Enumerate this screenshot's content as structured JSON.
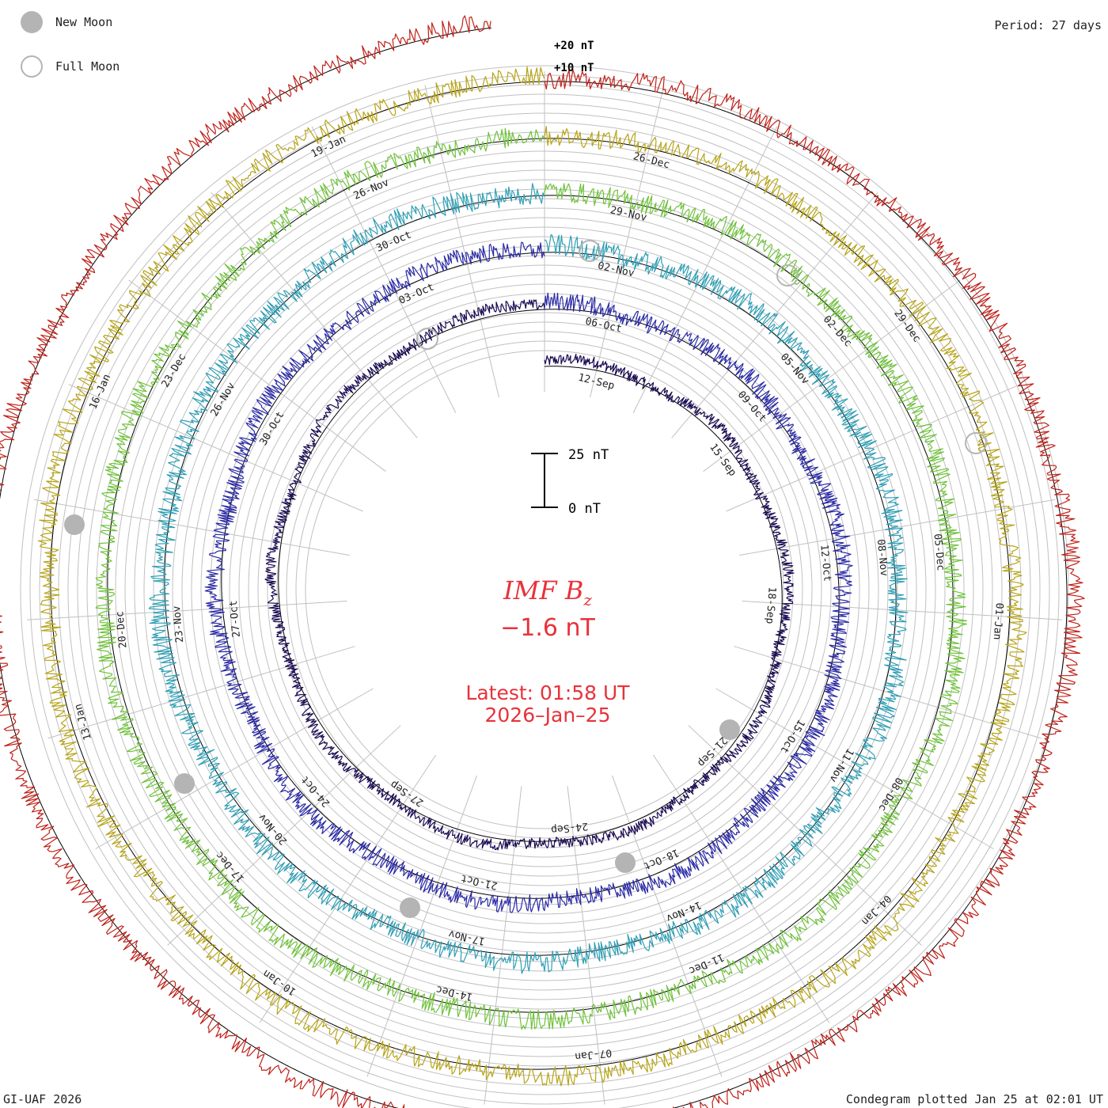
{
  "legend": {
    "new_moon": "New Moon",
    "full_moon": "Full Moon"
  },
  "period": "Period: 27 days",
  "footer": {
    "left": "GI-UAF 2026",
    "right": "Condegram plotted Jan 25 at 02:01 UT"
  },
  "center": {
    "title_main": "IMF B",
    "title_sub": "z",
    "value": "−1.6 nT",
    "latest": "Latest: 01:58 UT",
    "date": "2026–Jan–25",
    "scale_top": "25 nT",
    "scale_bottom": "0 nT"
  },
  "colors": {
    "title": "#e8323a",
    "grid": "#c0c0c0",
    "zero_ring": "#000000",
    "moon": "#b4b4b4"
  },
  "chart_data": {
    "type": "condegram",
    "title": "IMF Bz",
    "unit": "nT",
    "period_days": 27,
    "current_value": -1.6,
    "scale_labels": [
      "+20 nT",
      "+10 nT"
    ],
    "scale_bar_nT": [
      0,
      25
    ],
    "rotations": [
      {
        "color": "#1a0a52",
        "labels": [
          "12-Sep",
          "15-Sep",
          "18-Sep",
          "21-Sep",
          "24-Sep",
          "27-Sep"
        ]
      },
      {
        "color": "#2b2aa6",
        "labels": [
          "06-Oct",
          "09-Oct",
          "12-Oct",
          "15-Oct",
          "18-Oct",
          "21-Oct",
          "24-Oct",
          "27-Oct",
          "30-Oct",
          "03-Oct"
        ]
      },
      {
        "color": "#2f9fb5",
        "labels": [
          "02-Nov",
          "05-Nov",
          "08-Nov",
          "11-Nov",
          "14-Nov",
          "17-Nov",
          "20-Nov",
          "23-Nov",
          "26-Nov",
          "30-Oct"
        ]
      },
      {
        "color": "#6fc23a",
        "labels": [
          "29-Nov",
          "02-Dec",
          "05-Dec",
          "08-Dec",
          "11-Dec",
          "14-Dec",
          "17-Dec",
          "20-Dec",
          "23-Dec",
          "26-Nov"
        ]
      },
      {
        "color": "#b7a416",
        "labels": [
          "26-Dec",
          "29-Dec",
          "01-Jan",
          "04-Jan",
          "07-Jan",
          "10-Jan",
          "13-Jan",
          "16-Jan",
          "19-Jan"
        ]
      },
      {
        "color": "#c0221a",
        "labels": []
      }
    ],
    "new_moons": [
      "21-Sep",
      "21-Oct",
      "20-Nov",
      "20-Dec",
      "19-Jan"
    ],
    "full_moons": [
      "06-Oct",
      "05-Nov",
      "05-Dec",
      "03-Jan"
    ]
  }
}
